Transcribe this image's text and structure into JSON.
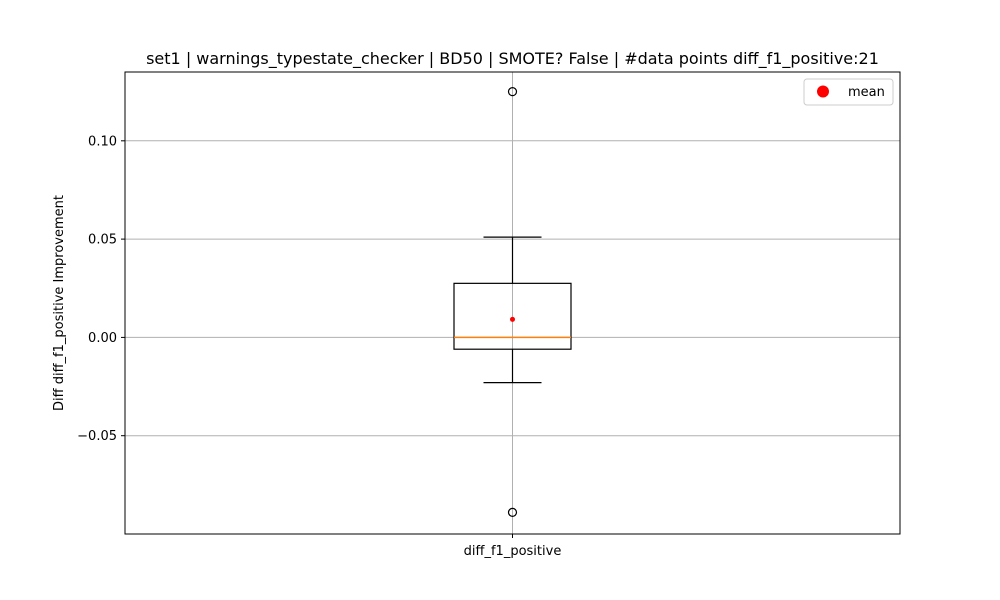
{
  "chart_data": {
    "type": "box",
    "title": "set1 | warnings_typestate_checker | BD50 | SMOTE? False | #data points diff_f1_positive:21",
    "xlabel": "",
    "ylabel": "Diff diff_f1_positive Improvement",
    "categories": [
      "diff_f1_positive"
    ],
    "ylim": [
      -0.1,
      0.135
    ],
    "yticks": [
      -0.05,
      0.0,
      0.05,
      0.1
    ],
    "ytick_labels": [
      "−0.05",
      "0.00",
      "0.05",
      "0.10"
    ],
    "grid": true,
    "legend": {
      "position": "top-right",
      "entries": [
        "mean"
      ]
    },
    "boxes": [
      {
        "name": "diff_f1_positive",
        "whisker_low": -0.023,
        "q1": -0.006,
        "median": 0.0,
        "q3": 0.0275,
        "whisker_high": 0.051,
        "mean": 0.0092,
        "outliers": [
          0.125,
          -0.089
        ]
      }
    ],
    "colors": {
      "box": "#000000",
      "median": "#ff7f0e",
      "mean": "#ff0000",
      "grid": "#b0b0b0"
    }
  }
}
